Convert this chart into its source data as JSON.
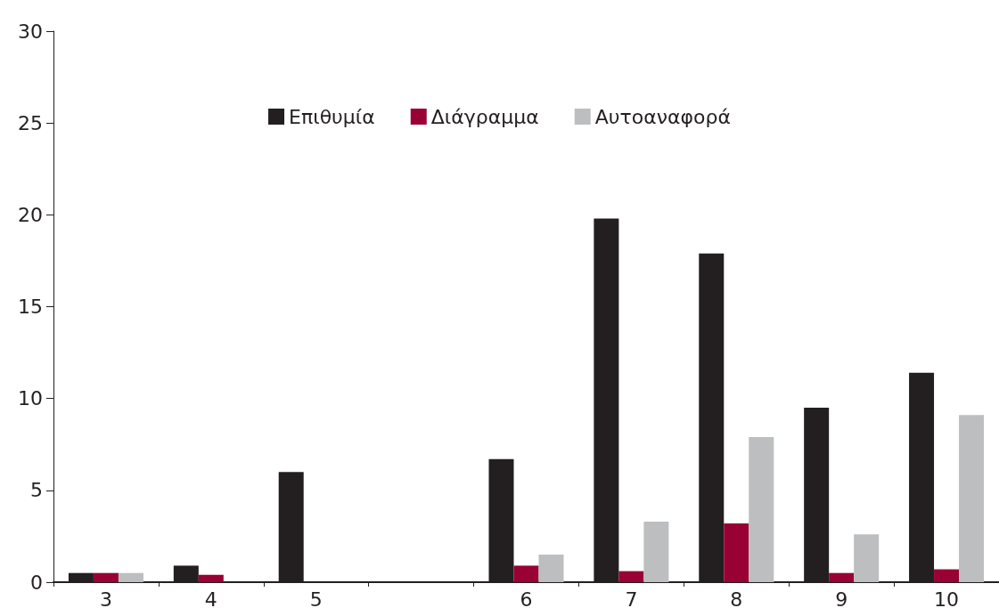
{
  "chart_data": {
    "type": "bar",
    "categories": [
      "3",
      "4",
      "5",
      null,
      "6",
      "7",
      "8",
      "9",
      "10"
    ],
    "series": [
      {
        "name": "Επιθυμία",
        "color": "#231f20",
        "values": [
          0.5,
          0.9,
          6.0,
          null,
          6.7,
          19.8,
          17.9,
          9.5,
          11.4
        ]
      },
      {
        "name": "Διάγραμμα",
        "color": "#990033",
        "values": [
          0.5,
          0.4,
          0,
          null,
          0.9,
          0.6,
          3.2,
          0.5,
          0.7
        ]
      },
      {
        "name": "Αυτοαναφορά",
        "color": "#bcbec0",
        "values": [
          0.5,
          0,
          0,
          null,
          1.5,
          3.3,
          7.9,
          2.6,
          9.1
        ]
      }
    ],
    "ylim": [
      0,
      30
    ],
    "yticks": [
      0,
      5,
      10,
      15,
      20,
      25,
      30
    ],
    "grid": false,
    "legend": "top"
  }
}
